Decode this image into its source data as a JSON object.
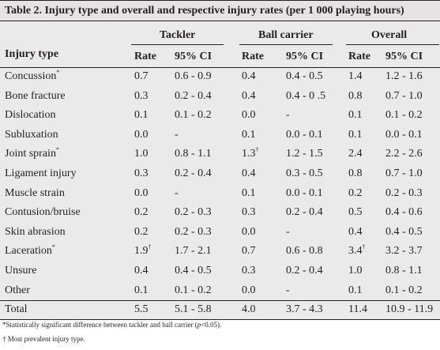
{
  "title": "Table 2. Injury type and overall and respective injury rates (per 1 000 playing hours)",
  "groups": [
    "Tackler",
    "Ball carrier",
    "Overall"
  ],
  "row_header": "Injury type",
  "subheaders": [
    "Rate",
    "95% CI",
    "Rate",
    "95% CI",
    "Rate",
    "95% CI"
  ],
  "rows": [
    {
      "type": "Concussion",
      "mark": "*",
      "tr": "0.7",
      "trm": "",
      "tci": "0.6 - 0.9",
      "br": "0.4",
      "brm": "",
      "bci": "0.4 - 0.5",
      "or": "1.4",
      "orm": "",
      "oci": "1.2 - 1.6"
    },
    {
      "type": "Bone fracture",
      "mark": "",
      "tr": "0.3",
      "trm": "",
      "tci": "0.2 - 0.4",
      "br": "0.4",
      "brm": "",
      "bci": "0.4 - 0 .5",
      "or": "0.8",
      "orm": "",
      "oci": "0.7 - 1.0"
    },
    {
      "type": "Dislocation",
      "mark": "",
      "tr": "0.1",
      "trm": "",
      "tci": "0.1 - 0.2",
      "br": "0.0",
      "brm": "",
      "bci": "-",
      "or": "0.1",
      "orm": "",
      "oci": "0.1 - 0.2"
    },
    {
      "type": "Subluxation",
      "mark": "",
      "tr": "0.0",
      "trm": "",
      "tci": "-",
      "br": "0.1",
      "brm": "",
      "bci": "0.0 - 0.1",
      "or": "0.1",
      "orm": "",
      "oci": "0.0 - 0.1"
    },
    {
      "type": "Joint sprain",
      "mark": "*",
      "tr": "1.0",
      "trm": "",
      "tci": "0.8 - 1.1",
      "br": "1.3",
      "brm": "†",
      "bci": "1.2 - 1.5",
      "or": "2.4",
      "orm": "",
      "oci": "2.2 - 2.6"
    },
    {
      "type": "Ligament injury",
      "mark": "",
      "tr": "0.3",
      "trm": "",
      "tci": "0.2 - 0.4",
      "br": "0.4",
      "brm": "",
      "bci": "0.3 - 0.5",
      "or": "0.8",
      "orm": "",
      "oci": "0.7 - 1.0"
    },
    {
      "type": "Muscle strain",
      "mark": "",
      "tr": "0.0",
      "trm": "",
      "tci": "-",
      "br": "0.1",
      "brm": "",
      "bci": "0.0 - 0.1",
      "or": "0.2",
      "orm": "",
      "oci": "0.2 - 0.3"
    },
    {
      "type": "Contusion/bruise",
      "mark": "",
      "tr": "0.2",
      "trm": "",
      "tci": "0.2 - 0.3",
      "br": "0.3",
      "brm": "",
      "bci": "0.2 - 0.4",
      "or": "0.5",
      "orm": "",
      "oci": "0.4 - 0.6"
    },
    {
      "type": "Skin abrasion",
      "mark": "",
      "tr": "0.2",
      "trm": "",
      "tci": "0.2 - 0.3",
      "br": "0.0",
      "brm": "",
      "bci": "-",
      "or": "0.4",
      "orm": "",
      "oci": "0.4 - 0.5"
    },
    {
      "type": "Laceration",
      "mark": "*",
      "tr": "1.9",
      "trm": "†",
      "tci": "1.7 - 2.1",
      "br": "0.7",
      "brm": "",
      "bci": "0.6 - 0.8",
      "or": "3.4",
      "orm": "†",
      "oci": "3.2 - 3.7"
    },
    {
      "type": "Unsure",
      "mark": "",
      "tr": "0.4",
      "trm": "",
      "tci": "0.4 - 0.5",
      "br": "0.3",
      "brm": "",
      "bci": "0.2 - 0.4",
      "or": "1.0",
      "orm": "",
      "oci": "0.8 - 1.1"
    },
    {
      "type": "Other",
      "mark": "",
      "tr": "0.1",
      "trm": "",
      "tci": "0.1 - 0.2",
      "br": "0.0",
      "brm": "",
      "bci": "-",
      "or": "0.1",
      "orm": "",
      "oci": "0.1 - 0.2"
    },
    {
      "type": "Total",
      "mark": "",
      "tr": "5.5",
      "trm": "",
      "tci": "5.1 - 5.8",
      "br": "4.0",
      "brm": "",
      "bci": "3.7 - 4.3",
      "or": "11.4",
      "orm": "",
      "oci": "10.9 - 11.9"
    }
  ],
  "footnote1": {
    "pre": "*Statistically significant difference between tackler and ball carrier (",
    "p": "p",
    "post": "<0.05)."
  },
  "footnote2": "† Most prevalent injury type."
}
